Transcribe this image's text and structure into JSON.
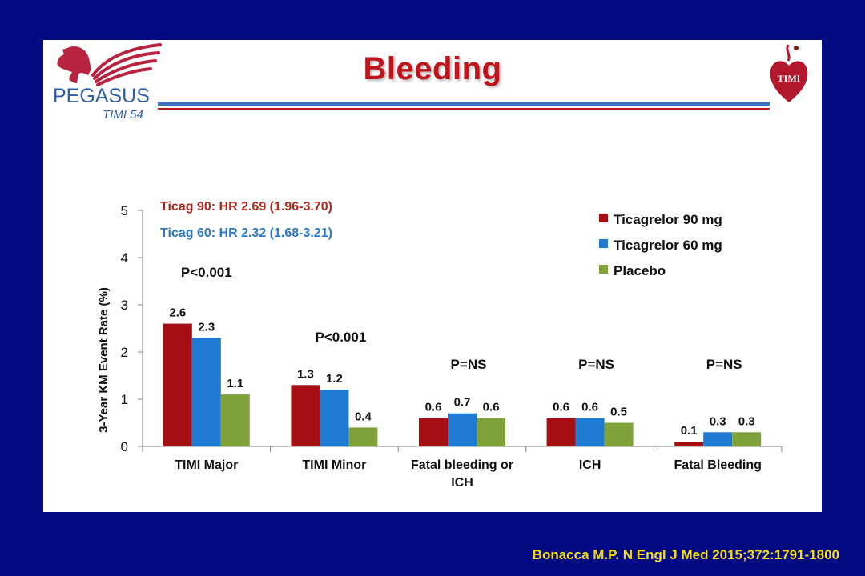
{
  "slide": {
    "title": "Bleeding",
    "logo_left_text": "PEGASUS",
    "logo_left_subtext": "TIMI 54",
    "logo_right_text": "TIMI",
    "citation": "Bonacca M.P. N Engl J Med 2015;372:1791-1800"
  },
  "colors": {
    "background": "#010a80",
    "title": "#c0141c",
    "citation": "#f5dc14",
    "ticag90": "#a50f14",
    "ticag60": "#1f7ad1",
    "placebo": "#7fa33a"
  },
  "chart_data": {
    "type": "bar",
    "title": "",
    "xlabel": "",
    "ylabel": "3-Year KM Event Rate (%)",
    "ylim": [
      0,
      5
    ],
    "yticks": [
      0,
      1,
      2,
      3,
      4,
      5
    ],
    "grid": false,
    "legend_position": "top-right",
    "categories": [
      "TIMI Major",
      "TIMI Minor",
      "Fatal bleeding or ICH",
      "ICH",
      "Fatal Bleeding"
    ],
    "series": [
      {
        "name": "Ticagrelor 90 mg",
        "color": "#a50f14",
        "values": [
          2.6,
          1.3,
          0.6,
          0.6,
          0.1
        ],
        "labels": [
          "2.6",
          "1.3",
          "0.6",
          "0.6",
          "0.1"
        ]
      },
      {
        "name": "Ticagrelor 60 mg",
        "color": "#1f7ad1",
        "values": [
          2.3,
          1.2,
          0.7,
          0.6,
          0.3
        ],
        "labels": [
          "2.3",
          "1.2",
          "0.7",
          "0.6",
          "0.3"
        ]
      },
      {
        "name": "Placebo",
        "color": "#7fa33a",
        "values": [
          1.1,
          0.4,
          0.6,
          0.5,
          0.3
        ],
        "labels": [
          "1.1",
          "0.4",
          "0.6",
          "0.5",
          "0.3"
        ]
      }
    ],
    "p_values": [
      "P<0.001",
      "P<0.001",
      "P=NS",
      "P=NS",
      "P=NS"
    ],
    "annotations": [
      {
        "text": "Ticag 90: HR 2.69 (1.96-3.70)",
        "color": "#b3261e"
      },
      {
        "text": "Ticag 60: HR 2.32 (1.68-3.21)",
        "color": "#2a78c8"
      }
    ]
  }
}
